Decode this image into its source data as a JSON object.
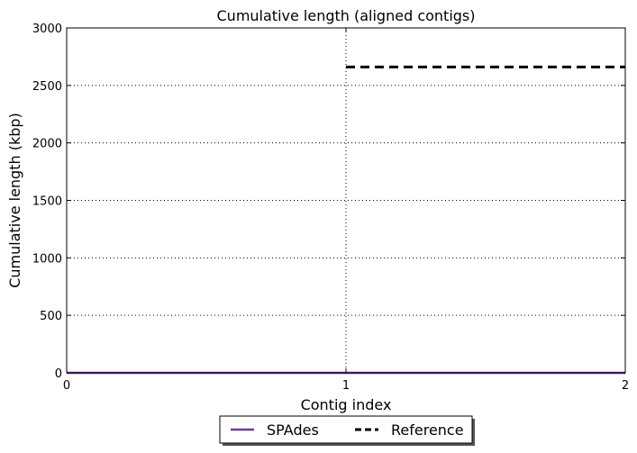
{
  "chart_data": {
    "type": "line",
    "title": "Cumulative length (aligned contigs)",
    "xlabel": "Contig index",
    "ylabel": "Cumulative length (kbp)",
    "xlim": [
      0,
      2
    ],
    "ylim": [
      0,
      3000
    ],
    "xticks": [
      "0",
      "1",
      "2"
    ],
    "xtick_values": [
      0,
      1,
      2
    ],
    "yticks": [
      "0",
      "500",
      "1000",
      "1500",
      "2000",
      "2500",
      "3000"
    ],
    "ytick_values": [
      0,
      500,
      1000,
      1500,
      2000,
      2500,
      3000
    ],
    "grid": true,
    "legend_position": "bottom-center",
    "series": [
      {
        "name": "SPAdes",
        "color": "#6a3d9a",
        "style": "solid",
        "x": [
          0,
          2
        ],
        "y": [
          0,
          0
        ]
      },
      {
        "name": "Reference",
        "color": "#000000",
        "style": "dashed",
        "x": [
          1,
          2
        ],
        "y": [
          2660,
          2660
        ]
      }
    ]
  }
}
